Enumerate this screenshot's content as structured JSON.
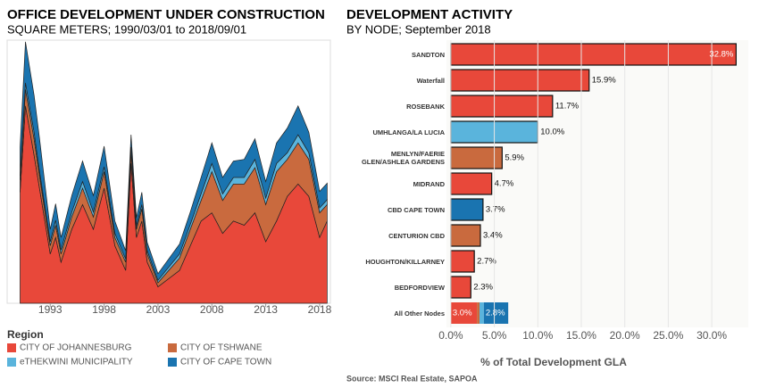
{
  "chart_data": [
    {
      "type": "area",
      "title": "OFFICE DEVELOPMENT UNDER CONSTRUCTION",
      "subtitle": "SQUARE METERS; 1990/03/01 to 2018/09/01",
      "legend_title": "Region",
      "x": [
        1990.2,
        1990.7,
        1991.5,
        1992,
        1993,
        1993.5,
        1994,
        1995,
        1996,
        1997,
        1998,
        1999,
        2000,
        2000.5,
        2001,
        2001.5,
        2002,
        2003,
        2004,
        2005,
        2006,
        2007,
        2008,
        2009,
        2010,
        2011,
        2012,
        2013,
        2014,
        2015,
        2016,
        2017,
        2018,
        2018.7
      ],
      "series": [
        {
          "name": "CITY OF JOHANNESBURG",
          "color": "#e8483a",
          "values": [
            135,
            240,
            180,
            140,
            60,
            80,
            50,
            90,
            120,
            90,
            140,
            70,
            40,
            170,
            80,
            100,
            50,
            20,
            30,
            40,
            70,
            100,
            110,
            85,
            100,
            95,
            110,
            75,
            100,
            130,
            145,
            130,
            80,
            100
          ]
        },
        {
          "name": "CITY OF TSHWANE",
          "color": "#c96a3e",
          "values": [
            15,
            20,
            20,
            15,
            10,
            15,
            10,
            15,
            20,
            15,
            20,
            10,
            10,
            15,
            10,
            15,
            10,
            5,
            10,
            15,
            20,
            25,
            50,
            40,
            45,
            50,
            55,
            45,
            60,
            45,
            50,
            45,
            30,
            20
          ]
        },
        {
          "name": "eTHEKWINI MUNICIPALITY",
          "color": "#5ab4dc",
          "values": [
            5,
            8,
            8,
            6,
            5,
            6,
            5,
            6,
            8,
            6,
            6,
            5,
            4,
            5,
            4,
            5,
            4,
            3,
            4,
            5,
            6,
            8,
            10,
            8,
            8,
            8,
            10,
            8,
            10,
            8,
            10,
            8,
            6,
            6
          ]
        },
        {
          "name": "CITY OF CAPE TOWN",
          "color": "#1a74b0",
          "values": [
            35,
            50,
            45,
            40,
            15,
            20,
            15,
            20,
            25,
            20,
            25,
            15,
            10,
            15,
            10,
            15,
            10,
            8,
            10,
            12,
            15,
            20,
            25,
            20,
            20,
            22,
            25,
            20,
            25,
            30,
            35,
            25,
            20,
            20
          ]
        }
      ],
      "xlim": [
        1989,
        2019
      ],
      "xticks": [
        1993,
        1998,
        2003,
        2008,
        2013,
        2018
      ],
      "ylim": [
        0,
        320
      ]
    },
    {
      "type": "hbar",
      "title": "DEVELOPMENT ACTIVITY",
      "subtitle": "BY NODE; September 2018",
      "xlabel": "% of Total Development  GLA",
      "categories": [
        "SANDTON",
        "Waterfall",
        "ROSEBANK",
        "UMHLANGA/LA LUCIA",
        "MENLYN/FAERIE GLEN/ASHLEA GARDENS",
        "MIDRAND",
        "CBD CAPE TOWN",
        "CENTURION CBD",
        "HOUGHTON/KILLARNEY",
        "BEDFORDVIEW",
        "All Other Nodes"
      ],
      "values": [
        32.8,
        15.9,
        11.7,
        10.0,
        5.9,
        4.7,
        3.7,
        3.4,
        2.7,
        2.3,
        null
      ],
      "value_labels": [
        "32.8%",
        "15.9%",
        "11.7%",
        "10.0%",
        "5.9%",
        "4.7%",
        "3.7%",
        "3.4%",
        "2.7%",
        "2.3%",
        null
      ],
      "colors": [
        "#e8483a",
        "#e8483a",
        "#e8483a",
        "#5ab4dc",
        "#c96a3e",
        "#e8483a",
        "#1a74b0",
        "#c96a3e",
        "#e8483a",
        "#e8483a",
        null
      ],
      "other_segments": {
        "values": [
          3.0,
          0.3,
          0.5,
          2.8
        ],
        "colors": [
          "#e8483a",
          "#c96a3e",
          "#5ab4dc",
          "#1a74b0"
        ],
        "value_labels": [
          "3.0%",
          null,
          null,
          "2.8%"
        ]
      },
      "xlim": [
        -0.5,
        34.2
      ],
      "xticks": [
        {
          "value": 0,
          "label": "0.0%"
        },
        {
          "value": 5,
          "label": "5.0%"
        },
        {
          "value": 10,
          "label": "10.0%"
        },
        {
          "value": 15,
          "label": "15.0%"
        },
        {
          "value": 20,
          "label": "20.0%"
        },
        {
          "value": 25,
          "label": "25.0%"
        },
        {
          "value": 30,
          "label": "30.0%"
        }
      ]
    }
  ],
  "source": "Source: MSCI Real Estate, SAPOA"
}
